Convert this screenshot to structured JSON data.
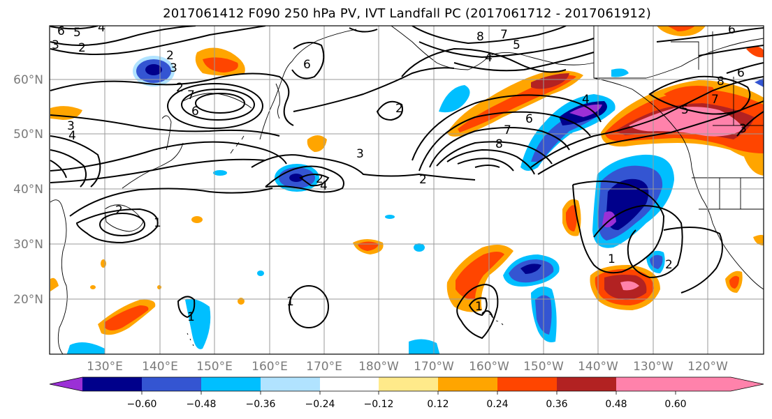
{
  "title": "2017061412 F090 250 hPa PV, IVT Landfall PC (2017061712 - 2017061912)",
  "map": {
    "lat_ticks": [
      "20°N",
      "30°N",
      "40°N",
      "50°N",
      "60°N"
    ],
    "lon_ticks": [
      "130°E",
      "140°E",
      "150°E",
      "160°E",
      "170°E",
      "180°W",
      "170°W",
      "160°W",
      "150°W",
      "140°W",
      "130°W",
      "120°W"
    ],
    "contour_labels": [
      "6",
      "5",
      "4",
      "3",
      "2",
      "2",
      "3",
      "2",
      "6",
      "6",
      "7",
      "8",
      "7",
      "5",
      "4",
      "2",
      "6",
      "7",
      "8",
      "4",
      "5",
      "7",
      "6",
      "8",
      "6",
      "3",
      "4",
      "3",
      "2",
      "4",
      "1",
      "2",
      "2",
      "1",
      "1",
      "2",
      "3",
      "1",
      "1"
    ]
  },
  "colorbar": {
    "colors": [
      "#9b30d6",
      "#00008b",
      "#3455d2",
      "#00bfff",
      "#b1e3ff",
      "#ffffff",
      "#ffea8a",
      "#ffa500",
      "#ff4500",
      "#b22222",
      "#ff82ab"
    ],
    "tick_labels": [
      "−0.60",
      "−0.48",
      "−0.36",
      "−0.24",
      "−0.12",
      "0.12",
      "0.24",
      "0.36",
      "0.48",
      "0.60"
    ]
  }
}
